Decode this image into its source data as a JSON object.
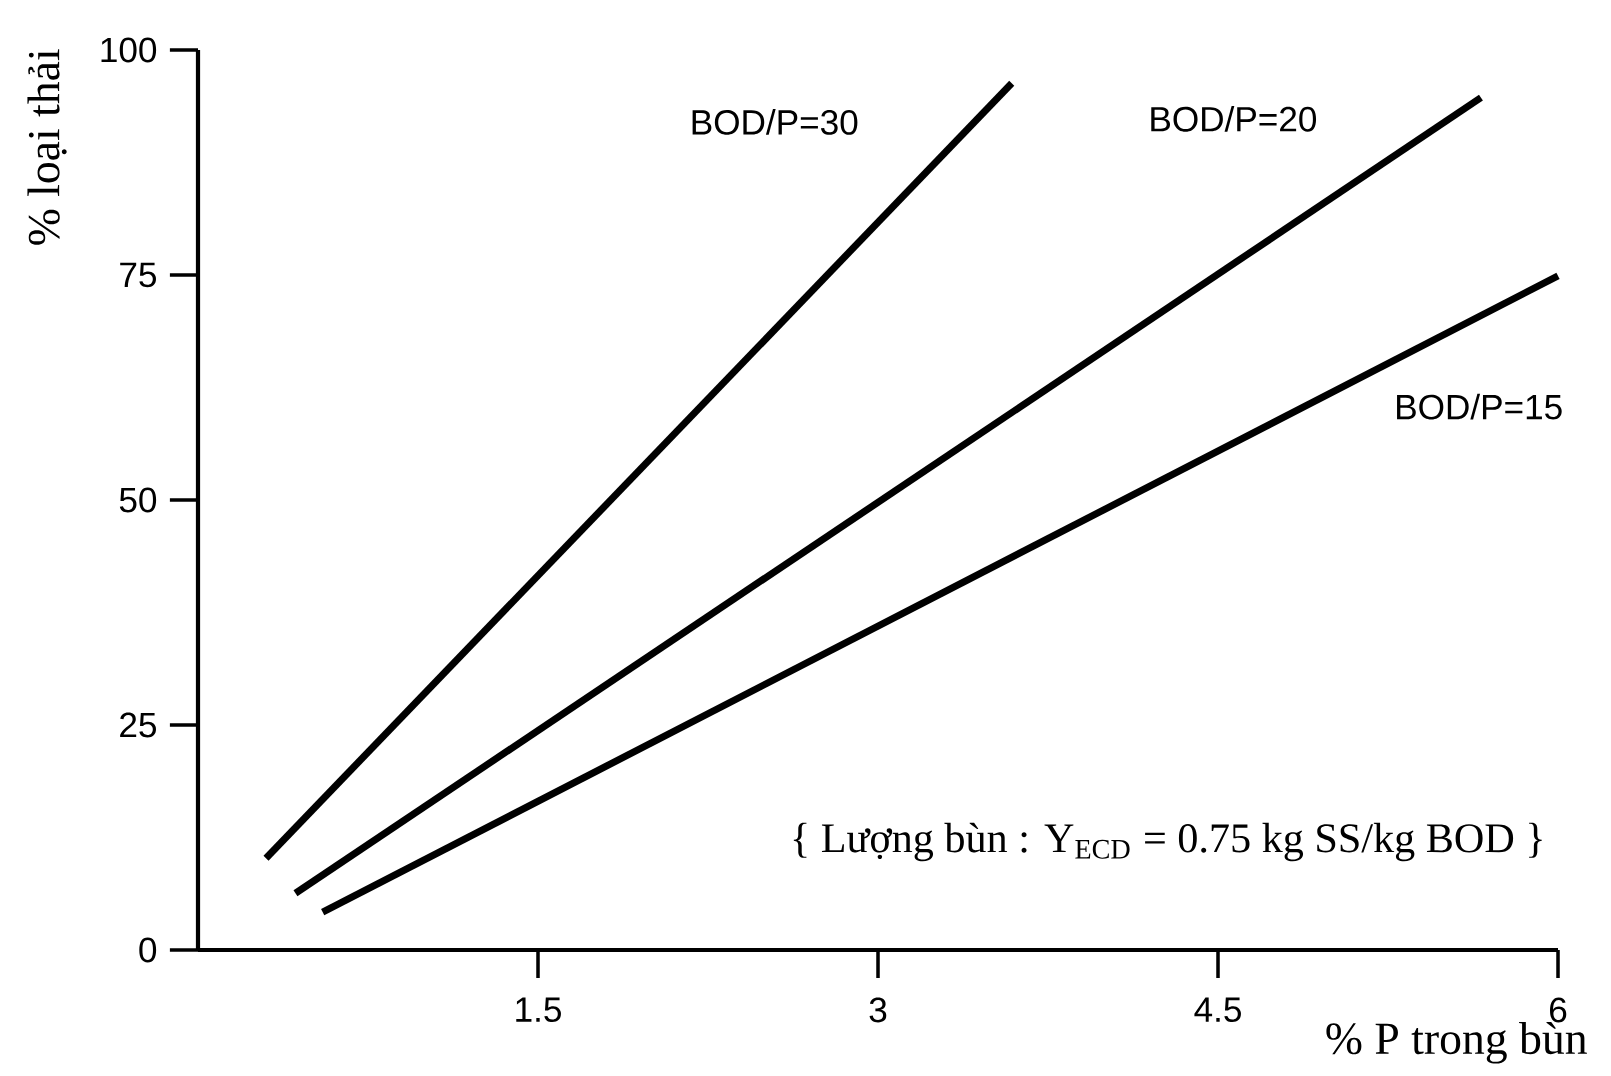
{
  "chart_data": {
    "type": "line",
    "xlabel": "% P trong bùn",
    "ylabel": "% loại thải",
    "xlim": [
      0,
      6
    ],
    "ylim": [
      0,
      100
    ],
    "xticks": [
      1.5,
      3,
      4.5,
      6
    ],
    "yticks": [
      0,
      25,
      50,
      75,
      100
    ],
    "grid": false,
    "marker": "none",
    "line_style": "solid",
    "series": [
      {
        "name": "BOD/P=30",
        "color": "#000000",
        "x": [
          0.3,
          3.59
        ],
        "values": [
          10.2,
          96.3
        ]
      },
      {
        "name": "BOD/P=20",
        "color": "#000000",
        "x": [
          0.43,
          5.66
        ],
        "values": [
          6.3,
          94.7
        ]
      },
      {
        "name": "BOD/P=15",
        "color": "#000000",
        "x": [
          0.55,
          6.0
        ],
        "values": [
          4.2,
          74.9
        ]
      }
    ],
    "annotations": [
      "{ Lượng bùn : Y$_{ECD}$ = 0.75 kg SS/kg BOD }"
    ]
  }
}
